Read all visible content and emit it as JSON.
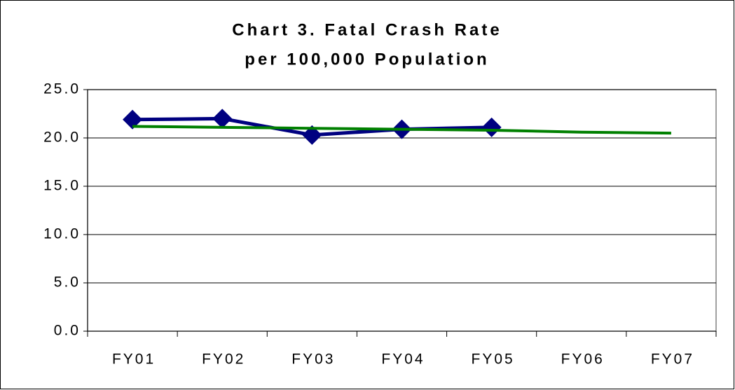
{
  "chart_data": {
    "type": "line",
    "title": [
      "Chart 3. Fatal Crash Rate",
      "per 100,000 Population"
    ],
    "categories": [
      "FY01",
      "FY02",
      "FY03",
      "FY04",
      "FY05",
      "FY06",
      "FY07"
    ],
    "series": [
      {
        "color": "#000080",
        "marker": "diamond",
        "values": [
          21.9,
          22.0,
          20.3,
          20.9,
          21.1,
          null,
          null
        ]
      },
      {
        "color": "#008000",
        "marker": "none",
        "values": [
          21.2,
          21.1,
          21.0,
          20.9,
          20.8,
          20.6,
          20.5
        ]
      }
    ],
    "ylim": [
      0,
      25
    ],
    "yticks": [
      {
        "value": 0,
        "label": "0.0"
      },
      {
        "value": 5,
        "label": "5.0"
      },
      {
        "value": 10,
        "label": "10.0"
      },
      {
        "value": 15,
        "label": "15.0"
      },
      {
        "value": 20,
        "label": "20.0"
      },
      {
        "value": 25,
        "label": "25.0"
      }
    ],
    "grid": true
  }
}
